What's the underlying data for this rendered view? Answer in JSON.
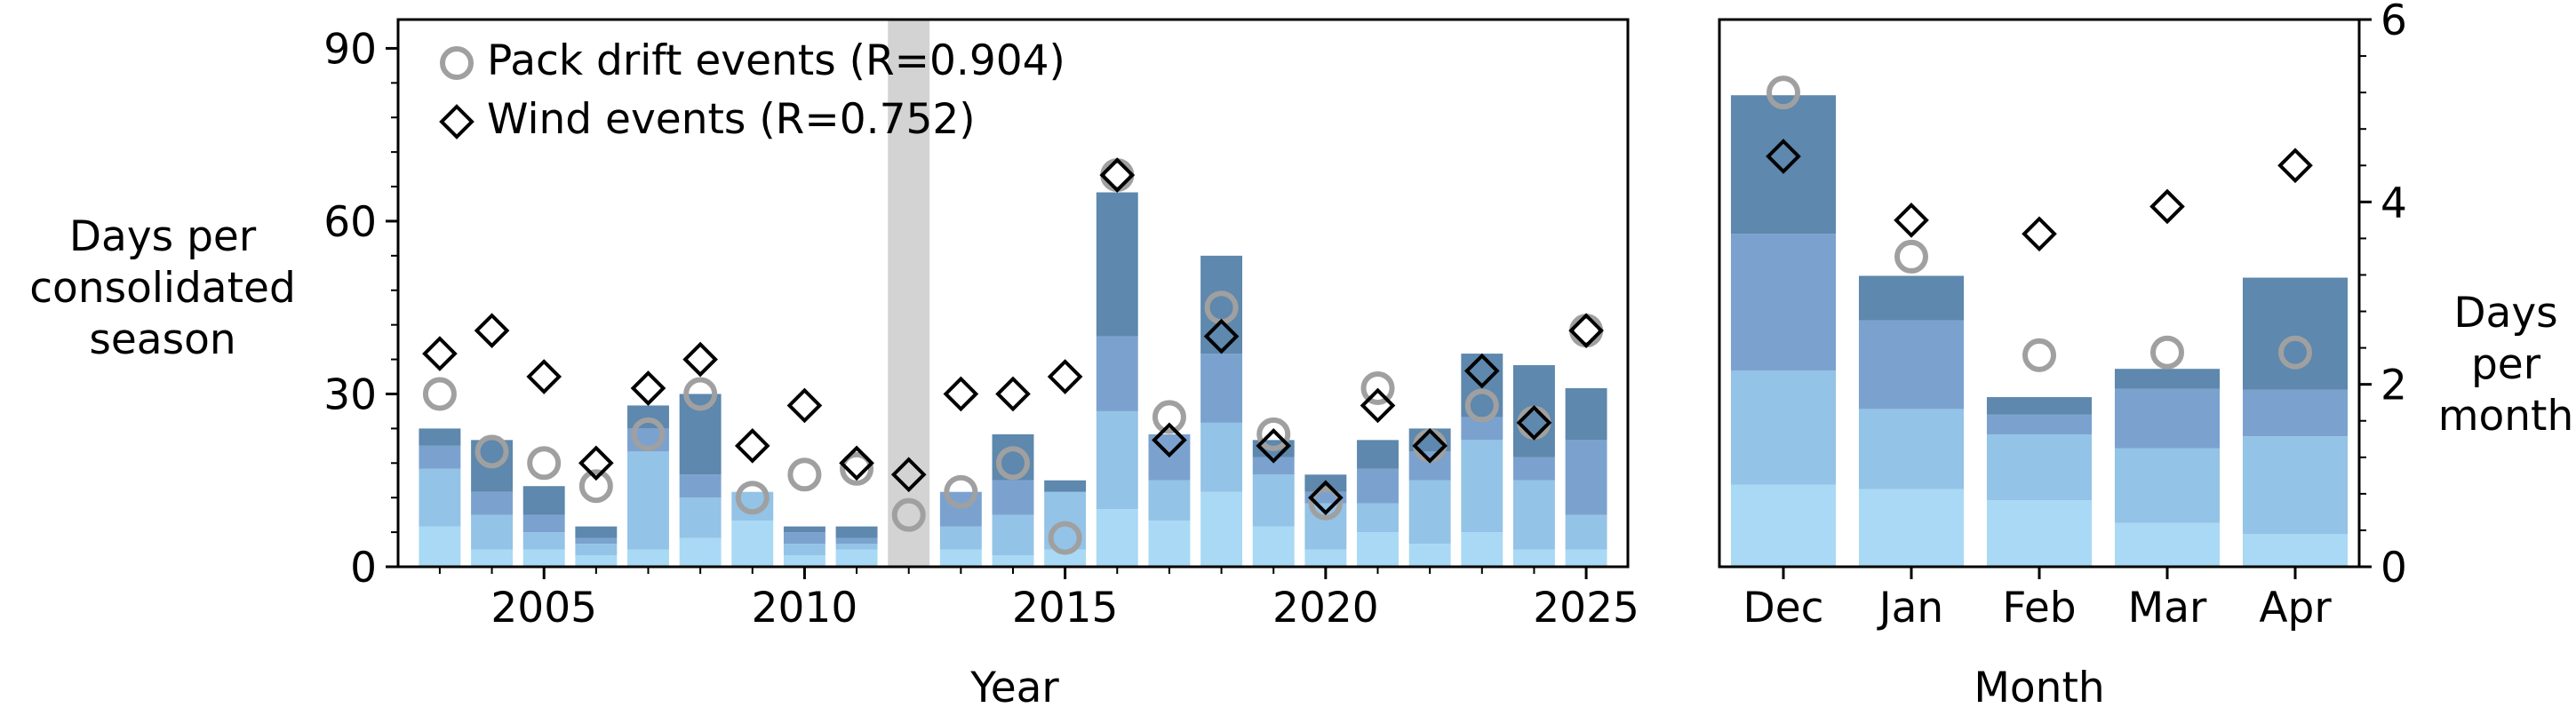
{
  "chart_data": [
    {
      "type": "bar",
      "stacked": true,
      "title": "",
      "xlabel": "Year",
      "ylabel": "Days per consolidated season",
      "ylim": [
        0,
        95
      ],
      "xlim": [
        2002.2,
        2025.8
      ],
      "xticks": [
        "2005",
        "2010",
        "2015",
        "2020",
        "2025"
      ],
      "yticks": [
        "0",
        "30",
        "60",
        "90"
      ],
      "shaded_year": 2012,
      "x": [
        2003,
        2004,
        2005,
        2006,
        2007,
        2008,
        2009,
        2010,
        2011,
        2013,
        2014,
        2015,
        2016,
        2017,
        2018,
        2019,
        2020,
        2021,
        2022,
        2023,
        2024,
        2025
      ],
      "series": [
        {
          "color": "#a9d9f5",
          "values": [
            7,
            3,
            3,
            2,
            3,
            5,
            8,
            2,
            3,
            3,
            2,
            3,
            10,
            8,
            13,
            7,
            3,
            6,
            4,
            6,
            3,
            3
          ]
        },
        {
          "color": "#93c3e6",
          "values": [
            10,
            6,
            3,
            2,
            17,
            7,
            5,
            2,
            1,
            4,
            7,
            10,
            17,
            7,
            12,
            9,
            8,
            5,
            11,
            16,
            12,
            6
          ]
        },
        {
          "color": "#7ba2cf",
          "values": [
            4,
            4,
            3,
            1,
            4,
            4,
            0,
            2,
            1,
            6,
            6,
            0,
            13,
            8,
            12,
            3,
            2,
            6,
            5,
            4,
            4,
            13
          ]
        },
        {
          "color": "#5e88ad",
          "values": [
            3,
            9,
            5,
            2,
            4,
            14,
            0,
            1,
            2,
            0,
            8,
            2,
            25,
            0,
            17,
            3,
            3,
            5,
            4,
            11,
            16,
            9
          ]
        }
      ],
      "markers": [
        {
          "name": "Pack drift events (R=0.904)",
          "style": "circle",
          "color": "#a0a0a0",
          "values": [
            30,
            20,
            18,
            14,
            23,
            30,
            12,
            16,
            17,
            9,
            13,
            18,
            5,
            68,
            26,
            45,
            23,
            11,
            31,
            21,
            28,
            25,
            41
          ]
        },
        {
          "name": "Wind events (R=0.752)",
          "style": "diamond",
          "color": "#000000",
          "values": [
            37,
            41,
            33,
            18,
            31,
            36,
            21,
            28,
            18,
            16,
            30,
            30,
            33,
            68,
            22,
            40,
            21,
            12,
            28,
            21,
            34,
            25,
            41
          ]
        }
      ],
      "marker_x": [
        2003,
        2004,
        2005,
        2006,
        2007,
        2008,
        2009,
        2010,
        2011,
        2012,
        2013,
        2014,
        2015,
        2016,
        2017,
        2018,
        2019,
        2020,
        2021,
        2022,
        2023,
        2024,
        2025
      ],
      "legend": "top-left"
    },
    {
      "type": "bar",
      "stacked": true,
      "title": "",
      "xlabel": "Month",
      "ylabel": "Days per month",
      "ylim": [
        0,
        6
      ],
      "yticks": [
        "0",
        "2",
        "4",
        "6"
      ],
      "categories": [
        "Dec",
        "Jan",
        "Feb",
        "Mar",
        "Apr"
      ],
      "series": [
        {
          "color": "#a9d9f5",
          "values": [
            0.9,
            0.85,
            0.73,
            0.48,
            0.36
          ]
        },
        {
          "color": "#93c3e6",
          "values": [
            1.25,
            0.88,
            0.72,
            0.82,
            1.07
          ]
        },
        {
          "color": "#7ba2cf",
          "values": [
            1.5,
            0.97,
            0.22,
            0.65,
            0.51
          ]
        },
        {
          "color": "#5e88ad",
          "values": [
            1.52,
            0.49,
            0.19,
            0.22,
            1.23
          ]
        }
      ],
      "markers": [
        {
          "name": "Pack drift events",
          "style": "circle",
          "color": "#a0a0a0",
          "values": [
            5.2,
            3.4,
            2.32,
            2.35,
            2.35
          ]
        },
        {
          "name": "Wind events",
          "style": "diamond",
          "color": "#000000",
          "values": [
            4.5,
            3.8,
            3.65,
            3.95,
            4.4
          ]
        }
      ]
    }
  ]
}
